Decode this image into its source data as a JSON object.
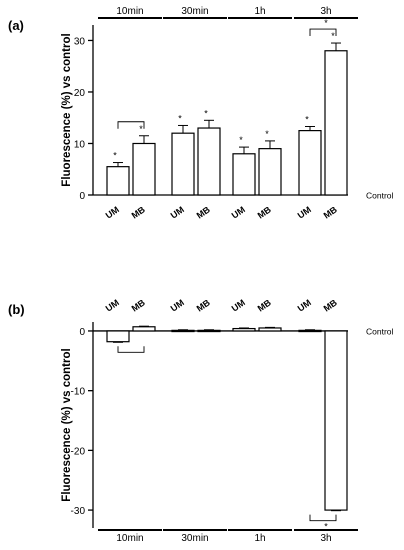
{
  "chart_data": [
    {
      "type": "bar",
      "panel_label": "(a)",
      "ylabel": "Fluorescence (%) vs control",
      "ylim": [
        0,
        33
      ],
      "yticks": [
        0,
        10,
        20,
        30
      ],
      "ytick_labels": [
        "0",
        "10",
        "20",
        "30"
      ],
      "baseline_label": "Control",
      "groups": [
        "10min",
        "30min",
        "1h",
        "3h"
      ],
      "categories": [
        "UM",
        "MB",
        "UM",
        "MB",
        "UM",
        "MB",
        "UM",
        "MB"
      ],
      "values": [
        5.5,
        10.0,
        12.0,
        13.0,
        8.0,
        9.0,
        12.5,
        28.0
      ],
      "errors": [
        0.8,
        1.5,
        1.5,
        1.5,
        1.3,
        1.5,
        0.8,
        1.5
      ],
      "significant": [
        true,
        true,
        true,
        true,
        true,
        true,
        true,
        true
      ],
      "sig_marker": "*",
      "comparisons": [
        {
          "group": 0,
          "marker": ""
        },
        {
          "group": 3,
          "marker": "*"
        }
      ]
    },
    {
      "type": "bar",
      "panel_label": "(b)",
      "ylabel": "Fluorescence (%) vs control",
      "ylim": [
        -33,
        1.5
      ],
      "yticks": [
        0,
        -10,
        -20,
        -30
      ],
      "ytick_labels": [
        "0",
        "-10",
        "-20",
        "-30"
      ],
      "baseline_label": "Control",
      "groups": [
        "10min",
        "30min",
        "1h",
        "3h"
      ],
      "categories": [
        "UM",
        "MB",
        "UM",
        "MB",
        "UM",
        "MB",
        "UM",
        "MB"
      ],
      "values": [
        -1.8,
        0.7,
        0.1,
        0.1,
        0.4,
        0.5,
        0.1,
        -30.0
      ],
      "errors": [
        0.1,
        0.1,
        0.1,
        0.1,
        0.1,
        0.1,
        0.1,
        0.1
      ],
      "comparisons": [
        {
          "group": 0,
          "marker": ""
        },
        {
          "group": 3,
          "marker": "*"
        }
      ]
    }
  ]
}
